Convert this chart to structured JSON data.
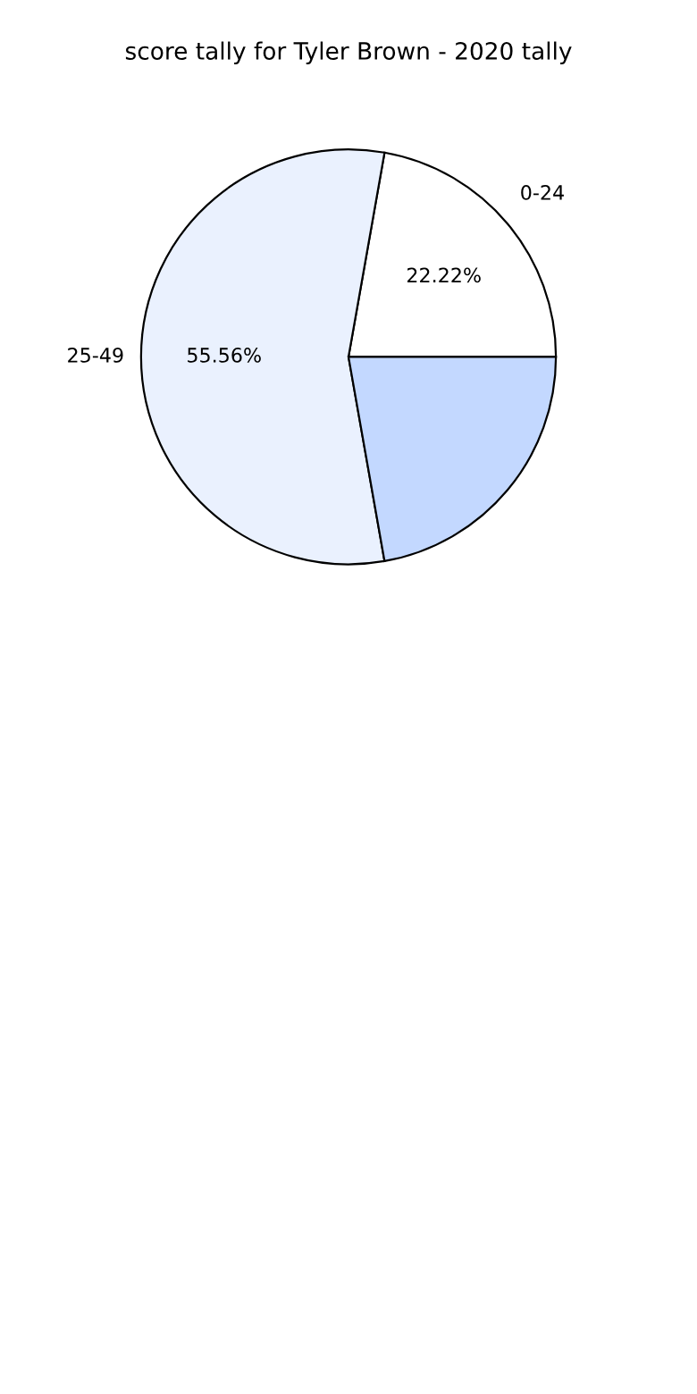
{
  "chart_data": {
    "type": "pie",
    "title": "score tally for Tyler Brown - 2020 tally",
    "categories": [
      "0-24",
      "25-49",
      null
    ],
    "values": [
      22.22,
      55.56,
      22.22
    ],
    "value_labels": [
      "22.22%",
      "55.56%",
      null
    ],
    "colors": [
      "#ffffff",
      "#eaf1fe",
      "#c3d8ff"
    ]
  }
}
